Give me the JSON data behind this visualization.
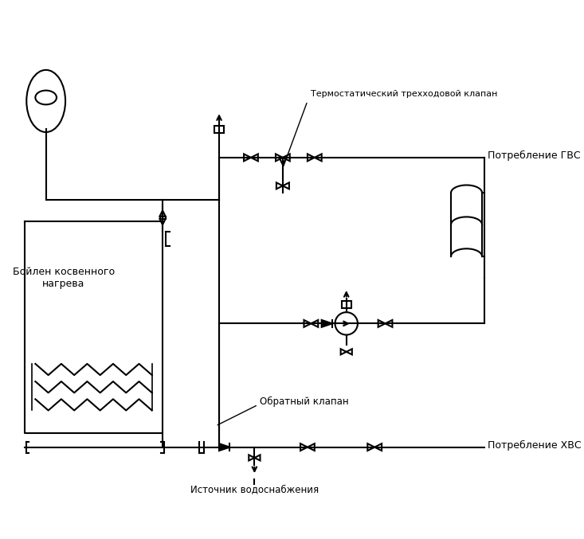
{
  "bg_color": "#ffffff",
  "line_color": "#000000",
  "title": "",
  "label_thermo": "Термостатический трехходовой клапан",
  "label_check": "Обратный клапан",
  "label_gvs": "Потребление ГВС",
  "label_hvs": "Потребление ХВС",
  "label_source": "Источник водоснабжения",
  "label_boiler": "Бойлен косвенного\nнагрева",
  "figsize": [
    7.33,
    6.77
  ],
  "dpi": 100
}
